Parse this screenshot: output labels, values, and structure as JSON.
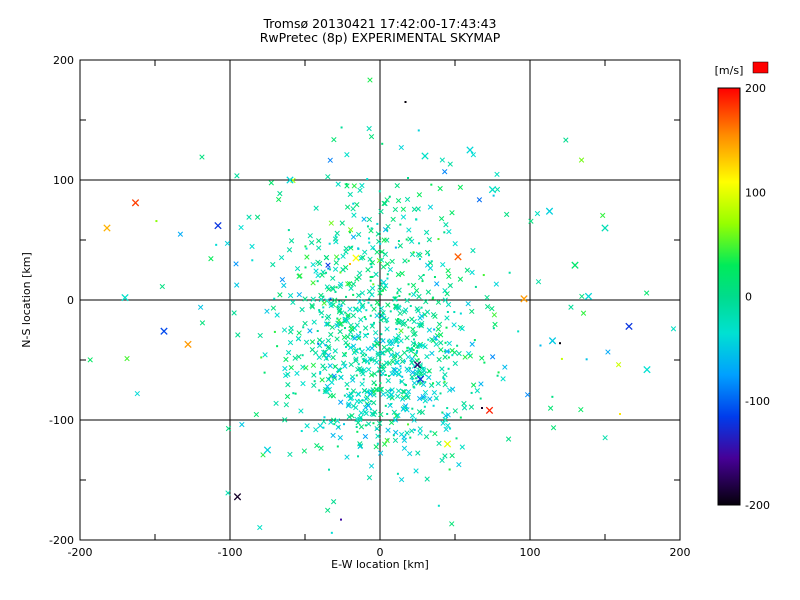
{
  "figure": {
    "background": "#ffffff",
    "frame_color": "#000000"
  },
  "chart_data": {
    "type": "scatter",
    "title": "Tromsø 20130421 17:42:00-17:43:43",
    "subtitle": "RwPretec (8p) EXPERIMENTAL SKYMAP",
    "xlabel": "E-W location [km]",
    "ylabel": "N-S location [km]",
    "xlim": [
      -200,
      200
    ],
    "ylim": [
      -200,
      200
    ],
    "xticks": [
      -200,
      -100,
      0,
      100,
      200
    ],
    "yticks": [
      200,
      100,
      0,
      -100,
      -200
    ],
    "grid": true,
    "grid_values": [
      -100,
      0,
      100
    ],
    "legend_position": "none",
    "colorbar": {
      "label": "[m/s]",
      "ticks": [
        200,
        100,
        0,
        -100,
        -200
      ],
      "lim": [
        -200,
        200
      ],
      "overflow_marker_color": "#ff0000",
      "stops": [
        [
          200,
          [
            255,
            0,
            0
          ]
        ],
        [
          155,
          [
            255,
            140,
            0
          ]
        ],
        [
          110,
          [
            255,
            255,
            0
          ]
        ],
        [
          70,
          [
            150,
            255,
            0
          ]
        ],
        [
          30,
          [
            0,
            235,
            90
          ]
        ],
        [
          0,
          [
            0,
            220,
            140
          ]
        ],
        [
          -35,
          [
            0,
            225,
            210
          ]
        ],
        [
          -75,
          [
            0,
            160,
            255
          ]
        ],
        [
          -115,
          [
            0,
            60,
            235
          ]
        ],
        [
          -155,
          [
            70,
            0,
            150
          ]
        ],
        [
          -200,
          [
            5,
            0,
            10
          ]
        ]
      ]
    },
    "points": {
      "note": "dense echo cloud approximated by seeded gaussian clusters; distinct outliers listed explicitly",
      "seed": 20130421,
      "clusters": [
        {
          "n": 450,
          "cx": -3,
          "cy": -18,
          "sx": 32,
          "sy": 55,
          "v_mean": 0,
          "v_sd": 22,
          "marker": "x"
        },
        {
          "n": 200,
          "cx": -3,
          "cy": -18,
          "sx": 32,
          "sy": 55,
          "v_mean": -5,
          "v_sd": 25,
          "marker": "dot"
        },
        {
          "n": 180,
          "cx": 5,
          "cy": -70,
          "sx": 25,
          "sy": 35,
          "v_mean": -35,
          "v_sd": 18,
          "marker": "x"
        },
        {
          "n": 60,
          "cx": 5,
          "cy": -70,
          "sx": 25,
          "sy": 35,
          "v_mean": -30,
          "v_sd": 20,
          "marker": "dot"
        },
        {
          "n": 110,
          "cx": 0,
          "cy": 0,
          "sx": 85,
          "sy": 75,
          "v_mean": -20,
          "v_sd": 45,
          "marker": "x"
        },
        {
          "n": 30,
          "cx": 0,
          "cy": 0,
          "sx": 85,
          "sy": 75,
          "v_mean": -20,
          "v_sd": 45,
          "marker": "dot"
        }
      ],
      "outliers_format": [
        "x_km",
        "y_km",
        "velocity_ms",
        "marker"
      ],
      "outliers": [
        [
          -163,
          81,
          180,
          "x"
        ],
        [
          -182,
          60,
          140,
          "x"
        ],
        [
          -108,
          62,
          -120,
          "x"
        ],
        [
          -144,
          -26,
          -110,
          "x"
        ],
        [
          -128,
          -37,
          150,
          "x"
        ],
        [
          -95,
          -164,
          -190,
          "x"
        ],
        [
          17,
          165,
          -200,
          "dot"
        ],
        [
          73,
          -92,
          190,
          "x"
        ],
        [
          68,
          -90,
          -190,
          "dot"
        ],
        [
          96,
          1,
          150,
          "x"
        ],
        [
          166,
          -22,
          -120,
          "x"
        ],
        [
          115,
          -34,
          -50,
          "x"
        ],
        [
          120,
          -36,
          -200,
          "dot"
        ],
        [
          113,
          74,
          -45,
          "x"
        ],
        [
          139,
          3,
          -40,
          "x"
        ],
        [
          130,
          29,
          20,
          "x"
        ],
        [
          -26,
          -183,
          -150,
          "dot"
        ],
        [
          52,
          36,
          170,
          "x"
        ],
        [
          25,
          -54,
          -170,
          "x"
        ],
        [
          27,
          -66,
          -120,
          "x"
        ],
        [
          -16,
          35,
          110,
          "x"
        ],
        [
          -20,
          30,
          140,
          "dot"
        ],
        [
          60,
          125,
          -40,
          "x"
        ],
        [
          30,
          120,
          -30,
          "x"
        ],
        [
          -60,
          100,
          -40,
          "x"
        ],
        [
          75,
          92,
          -30,
          "x"
        ],
        [
          -75,
          -125,
          -45,
          "x"
        ],
        [
          45,
          -120,
          100,
          "x"
        ],
        [
          150,
          60,
          -20,
          "x"
        ],
        [
          -170,
          2,
          -30,
          "x"
        ],
        [
          178,
          -58,
          -35,
          "x"
        ],
        [
          160,
          -95,
          120,
          "dot"
        ]
      ]
    }
  }
}
